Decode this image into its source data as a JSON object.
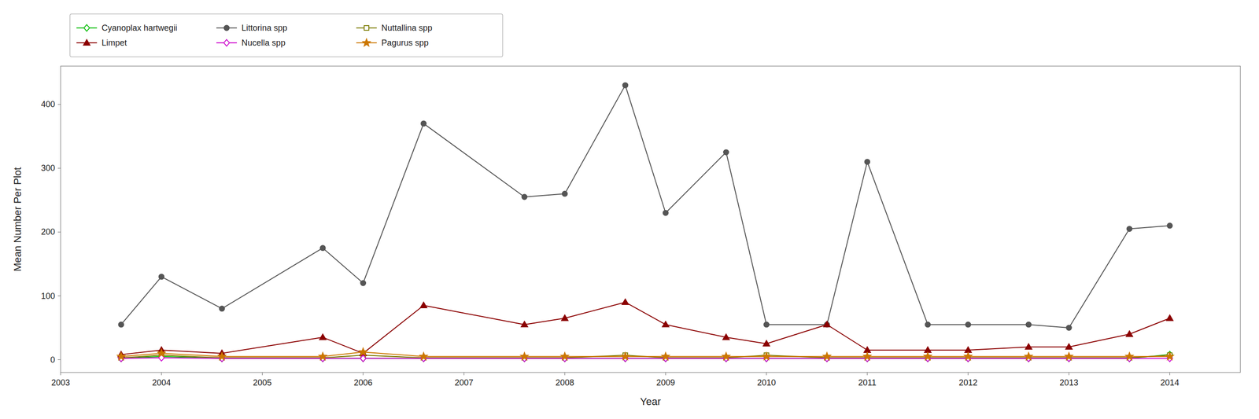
{
  "chart_data": {
    "type": "line",
    "x_label": "Year",
    "y_label": "Mean Number Per Plot",
    "x": [
      2003.6,
      2004.0,
      2004.6,
      2005.6,
      2006.0,
      2006.6,
      2007.6,
      2008.0,
      2008.6,
      2009.0,
      2009.6,
      2010.0,
      2010.6,
      2011.0,
      2011.6,
      2012.0,
      2012.6,
      2013.0,
      2013.6,
      2014.0
    ],
    "series": [
      {
        "name": "Cyanoplax hartwegii",
        "color": "#00BB00",
        "marker": "diamond-open",
        "values": [
          2,
          5,
          2,
          2,
          2,
          2,
          2,
          2,
          2,
          2,
          2,
          2,
          2,
          2,
          2,
          2,
          2,
          2,
          2,
          8
        ]
      },
      {
        "name": "Littorina spp",
        "color": "#555555",
        "marker": "circle",
        "values": [
          55,
          130,
          80,
          175,
          120,
          370,
          255,
          260,
          430,
          230,
          325,
          55,
          55,
          310,
          55,
          55,
          55,
          50,
          205,
          210
        ]
      },
      {
        "name": "Nuttallina spp",
        "color": "#7B7B00",
        "marker": "square-open",
        "values": [
          3,
          7,
          3,
          3,
          7,
          3,
          3,
          3,
          7,
          3,
          3,
          7,
          3,
          3,
          3,
          3,
          3,
          3,
          3,
          7
        ]
      },
      {
        "name": "Limpet",
        "color": "#8B0000",
        "marker": "triangle",
        "values": [
          8,
          15,
          10,
          35,
          10,
          85,
          55,
          65,
          90,
          55,
          35,
          25,
          55,
          15,
          15,
          15,
          20,
          20,
          40,
          65
        ]
      },
      {
        "name": "Nucella spp",
        "color": "#CC00CC",
        "marker": "diamond-open",
        "values": [
          2,
          3,
          2,
          2,
          2,
          2,
          2,
          2,
          2,
          2,
          2,
          2,
          2,
          2,
          2,
          2,
          2,
          2,
          2,
          2
        ]
      },
      {
        "name": "Pagurus spp",
        "color": "#CC7700",
        "marker": "star",
        "values": [
          5,
          10,
          5,
          5,
          12,
          5,
          5,
          5,
          5,
          5,
          5,
          5,
          5,
          5,
          5,
          5,
          5,
          5,
          5,
          5
        ]
      }
    ],
    "xlim": [
      2003,
      2014.7
    ],
    "ylim": [
      -20,
      460
    ],
    "xticks": [
      2003,
      2004,
      2005,
      2006,
      2007,
      2008,
      2009,
      2010,
      2011,
      2012,
      2013,
      2014
    ],
    "yticks": [
      0,
      100,
      200,
      300,
      400
    ],
    "grid": false,
    "legend": "top"
  }
}
